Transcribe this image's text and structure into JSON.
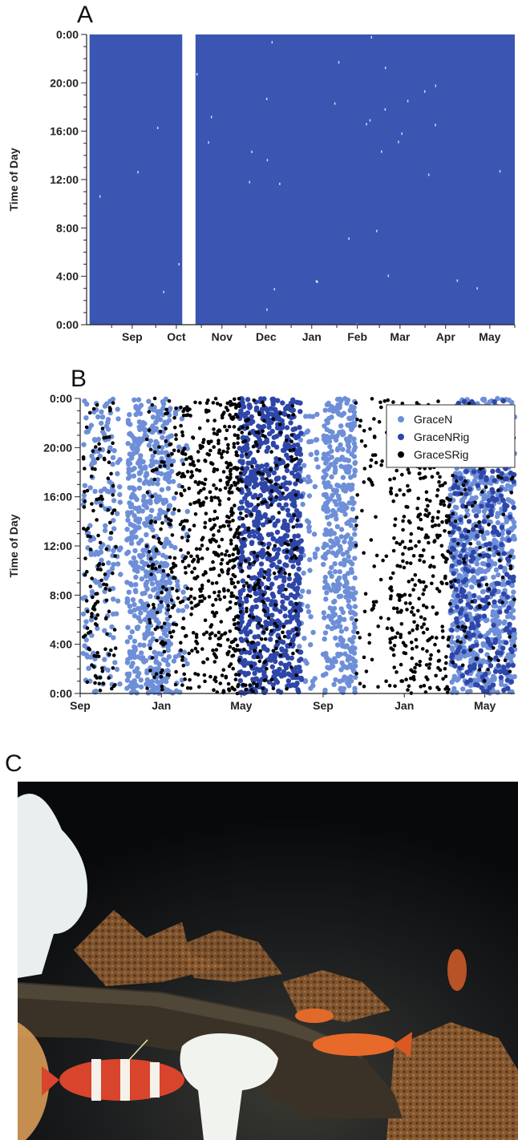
{
  "panels": {
    "a": "A",
    "b": "B",
    "c": "C"
  },
  "chart_data": [
    {
      "type": "scatter",
      "panel": "A",
      "title": "",
      "xlabel": "",
      "ylabel": "Time of Day",
      "x_ticks": [
        "Sep",
        "Oct",
        "Nov",
        "Dec",
        "Jan",
        "Feb",
        "Mar",
        "Apr",
        "May"
      ],
      "y_ticks": [
        "0:00",
        "4:00",
        "8:00",
        "12:00",
        "16:00",
        "20:00",
        "0:00"
      ],
      "ylim": [
        0,
        24
      ],
      "xlim": [
        "2007-08-15",
        "2008-06-01"
      ],
      "series": [
        {
          "color": "#3b55b2",
          "coverage": [
            {
              "from": "2007-08-17",
              "to": "2007-10-19"
            },
            {
              "from": "2007-10-28",
              "to": "2008-06-01"
            }
          ]
        }
      ],
      "grid": false,
      "legend": "none"
    },
    {
      "type": "scatter",
      "panel": "B",
      "title": "",
      "xlabel": "",
      "ylabel": "Time of Day",
      "x_ticks": [
        "Sep",
        "Jan",
        "May",
        "Sep",
        "Jan",
        "May"
      ],
      "y_ticks": [
        "0:00",
        "4:00",
        "8:00",
        "12:00",
        "16:00",
        "20:00",
        "0:00"
      ],
      "ylim": [
        0,
        24
      ],
      "xlim": [
        "2006-09-01",
        "2008-06-15"
      ],
      "legend": "top-right",
      "grid": false,
      "series": [
        {
          "name": "GraceN",
          "color": "#6e8fd8",
          "periods": [
            {
              "from": "2006-09-05",
              "to": "2006-11-01",
              "density": 0.35
            },
            {
              "from": "2006-11-10",
              "to": "2007-01-15",
              "density": 1.0
            },
            {
              "from": "2007-01-15",
              "to": "2007-02-10",
              "density": 0.2
            },
            {
              "from": "2007-07-25",
              "to": "2007-08-25",
              "density": 0.25
            },
            {
              "from": "2007-09-01",
              "to": "2007-10-20",
              "density": 1.0
            },
            {
              "from": "2008-03-10",
              "to": "2008-06-15",
              "density": 1.0
            }
          ]
        },
        {
          "name": "GraceNRig",
          "color": "#2e46a8",
          "periods": [
            {
              "from": "2007-04-28",
              "to": "2007-07-31",
              "density": 1.0
            },
            {
              "from": "2008-03-10",
              "to": "2008-06-15",
              "density": 0.35
            }
          ]
        },
        {
          "name": "GraceSRig",
          "color": "#000000",
          "periods": [
            {
              "from": "2006-09-05",
              "to": "2006-10-25",
              "density": 0.3
            },
            {
              "from": "2006-12-10",
              "to": "2007-01-20",
              "density": 0.3
            },
            {
              "from": "2007-01-20",
              "to": "2007-03-20",
              "density": 0.45
            },
            {
              "from": "2007-03-20",
              "to": "2007-04-10",
              "density": 0.6
            },
            {
              "from": "2007-04-10",
              "to": "2007-04-28",
              "density": 1.0
            },
            {
              "from": "2007-04-28",
              "to": "2007-07-25",
              "density": 0.25
            },
            {
              "from": "2007-10-20",
              "to": "2007-12-10",
              "density": 0.15
            },
            {
              "from": "2007-12-10",
              "to": "2008-03-10",
              "density": 0.45
            },
            {
              "from": "2008-03-10",
              "to": "2008-06-15",
              "density": 0.12
            }
          ]
        }
      ]
    }
  ],
  "photo": {
    "colors": {
      "water": "#0b0d10",
      "anemone": "#e9eeee",
      "sea_star": "#8a5a30",
      "rockfish": "#e86a2a",
      "banded_fish": "#d8452c",
      "kelp": "#3a3226"
    }
  }
}
